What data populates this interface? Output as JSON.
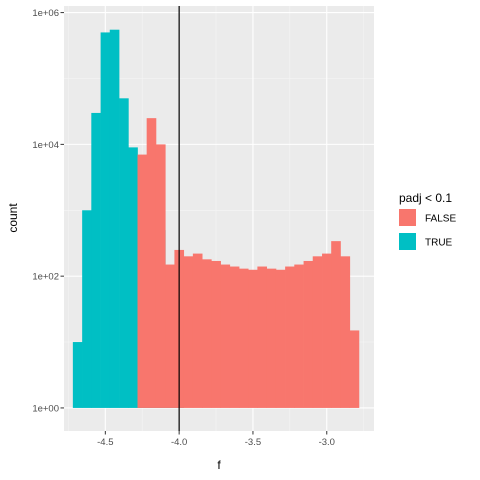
{
  "chart_data": {
    "type": "histogram",
    "x_label": "f",
    "y_label": "count",
    "y_scale": "log10",
    "x_range": [
      -4.78,
      -2.68
    ],
    "y_range_log10": [
      -0.35,
      6.1
    ],
    "x_ticks": [
      {
        "value": -4.5,
        "label": "-4.5"
      },
      {
        "value": -4.0,
        "label": "-4.0"
      },
      {
        "value": -3.5,
        "label": "-3.5"
      },
      {
        "value": -3.0,
        "label": "-3.0"
      }
    ],
    "y_ticks": [
      {
        "value": 1,
        "label": "1e+00"
      },
      {
        "value": 100,
        "label": "1e+02"
      },
      {
        "value": 10000,
        "label": "1e+04"
      },
      {
        "value": 1000000,
        "label": "1e+06"
      }
    ],
    "bin_width": 0.0625,
    "x_start": -4.72,
    "vline_x": -4.0,
    "grid": true,
    "legend": {
      "title": "padj < 0.1",
      "position": "right",
      "items": [
        {
          "label": "FALSE",
          "color": "#F8766D"
        },
        {
          "label": "TRUE",
          "color": "#00BFC4"
        }
      ]
    },
    "series": [
      {
        "name": "TRUE",
        "color": "#00BFC4",
        "bins": [
          {
            "x0": -4.72,
            "count": 10
          },
          {
            "x0": -4.657,
            "count": 1000
          },
          {
            "x0": -4.595,
            "count": 30000
          },
          {
            "x0": -4.532,
            "count": 500000
          },
          {
            "x0": -4.47,
            "count": 550000
          },
          {
            "x0": -4.407,
            "count": 50000
          },
          {
            "x0": -4.345,
            "count": 9000
          },
          {
            "x0": -4.282,
            "count": 2500
          },
          {
            "x0": -4.22,
            "count": 1000
          },
          {
            "x0": -4.157,
            "count": 500
          },
          {
            "x0": -4.095,
            "count": 60
          },
          {
            "x0": -4.032,
            "count": 2
          }
        ]
      },
      {
        "name": "FALSE",
        "color": "#F8766D",
        "bins": [
          {
            "x0": -4.282,
            "count": 7000
          },
          {
            "x0": -4.22,
            "count": 25000
          },
          {
            "x0": -4.157,
            "count": 10000
          },
          {
            "x0": -4.095,
            "count": 150
          },
          {
            "x0": -4.032,
            "count": 250
          },
          {
            "x0": -3.97,
            "count": 200
          },
          {
            "x0": -3.907,
            "count": 220
          },
          {
            "x0": -3.845,
            "count": 180
          },
          {
            "x0": -3.782,
            "count": 170
          },
          {
            "x0": -3.72,
            "count": 150
          },
          {
            "x0": -3.657,
            "count": 140
          },
          {
            "x0": -3.595,
            "count": 130
          },
          {
            "x0": -3.532,
            "count": 125
          },
          {
            "x0": -3.47,
            "count": 140
          },
          {
            "x0": -3.407,
            "count": 130
          },
          {
            "x0": -3.345,
            "count": 125
          },
          {
            "x0": -3.282,
            "count": 140
          },
          {
            "x0": -3.22,
            "count": 150
          },
          {
            "x0": -3.157,
            "count": 170
          },
          {
            "x0": -3.095,
            "count": 200
          },
          {
            "x0": -3.032,
            "count": 220
          },
          {
            "x0": -2.97,
            "count": 340
          },
          {
            "x0": -2.907,
            "count": 200
          },
          {
            "x0": -2.845,
            "count": 15
          }
        ]
      }
    ]
  }
}
